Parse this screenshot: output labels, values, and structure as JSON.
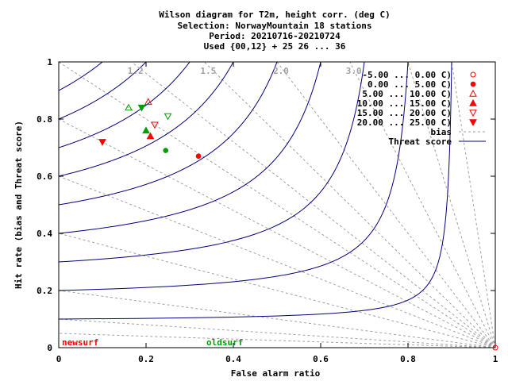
{
  "chart_data": {
    "type": "scatter",
    "title_lines": [
      "Wilson diagram  for T2m, height corr. (deg C)",
      "Selection: NorwayMountain     18 stations",
      "Period: 20210716-20210724",
      "Used {00,12} + 25 26 ... 36"
    ],
    "xlabel": "False alarm ratio",
    "ylabel": "Hit rate (bias and Threat score)",
    "xlim": [
      0,
      1
    ],
    "ylim": [
      0,
      1
    ],
    "x_ticks": [
      "0",
      "0.2",
      "0.4",
      "0.6",
      "0.8",
      "1"
    ],
    "y_ticks": [
      "0",
      "0.2",
      "0.4",
      "0.6",
      "0.8",
      "1"
    ],
    "x_tick_values": [
      0,
      0.2,
      0.4,
      0.6,
      0.8,
      1
    ],
    "y_tick_values": [
      0,
      0.2,
      0.4,
      0.6,
      0.8,
      1
    ],
    "bias_values": [
      0.2,
      0.4,
      0.6,
      0.8,
      1.0,
      1.2,
      1.5,
      2.0,
      3.0,
      5.0,
      10.0,
      0.1,
      0.05
    ],
    "bias_labels": [
      {
        "value": 1.2,
        "text": "1.2"
      },
      {
        "value": 1.5,
        "text": "1.5"
      },
      {
        "value": 2.0,
        "text": "2.0"
      },
      {
        "value": 3.0,
        "text": "3.0"
      }
    ],
    "threat_score_values": [
      0.1,
      0.2,
      0.3,
      0.4,
      0.5,
      0.6,
      0.7,
      0.8,
      0.9
    ],
    "legend": {
      "position": "top-right",
      "entries": [
        {
          "label": "-5.00 ...  0.00 C)",
          "marker": "circle-open"
        },
        {
          "label": "0.00 ...  5.00 C)",
          "marker": "circle-filled"
        },
        {
          "label": "5.00 ... 10.00 C)",
          "marker": "triangle-up-open"
        },
        {
          "label": "10.00 ... 15.00 C)",
          "marker": "triangle-up-filled"
        },
        {
          "label": "15.00 ... 20.00 C)",
          "marker": "triangle-down-open"
        },
        {
          "label": "20.00 ... 25.00 C)",
          "marker": "triangle-down-filled"
        },
        {
          "label": "bias",
          "marker": "dashed-line"
        },
        {
          "label": "Threat score",
          "marker": "solid-line"
        }
      ]
    },
    "experiments": [
      {
        "name": "newsurf",
        "color": "#ff0000"
      },
      {
        "name": "oldsurf",
        "color": "#00a000"
      }
    ],
    "series": [
      {
        "class": "-5.00 ...  0.00 C)",
        "experiment": "newsurf",
        "marker": "circle-open",
        "x": 1.0,
        "y": 0.0
      },
      {
        "class": "0.00 ...  5.00 C)",
        "experiment": "newsurf",
        "marker": "circle-filled",
        "x": 0.32,
        "y": 0.67
      },
      {
        "class": "0.00 ...  5.00 C)",
        "experiment": "oldsurf",
        "marker": "circle-filled",
        "x": 0.245,
        "y": 0.69
      },
      {
        "class": "5.00 ... 10.00 C)",
        "experiment": "oldsurf",
        "marker": "triangle-up-open",
        "x": 0.16,
        "y": 0.84
      },
      {
        "class": "5.00 ... 10.00 C)",
        "experiment": "newsurf",
        "marker": "triangle-up-open",
        "x": 0.205,
        "y": 0.86
      },
      {
        "class": "10.00 ... 15.00 C)",
        "experiment": "oldsurf",
        "marker": "triangle-up-filled",
        "x": 0.2,
        "y": 0.76
      },
      {
        "class": "10.00 ... 15.00 C)",
        "experiment": "newsurf",
        "marker": "triangle-up-filled",
        "x": 0.21,
        "y": 0.74
      },
      {
        "class": "15.00 ... 20.00 C)",
        "experiment": "oldsurf",
        "marker": "triangle-down-open",
        "x": 0.25,
        "y": 0.81
      },
      {
        "class": "15.00 ... 20.00 C)",
        "experiment": "newsurf",
        "marker": "triangle-down-open",
        "x": 0.22,
        "y": 0.78
      },
      {
        "class": "20.00 ... 25.00 C)",
        "experiment": "oldsurf",
        "marker": "triangle-down-filled",
        "x": 0.19,
        "y": 0.84
      },
      {
        "class": "20.00 ... 25.00 C)",
        "experiment": "newsurf",
        "marker": "triangle-down-filled",
        "x": 0.1,
        "y": 0.72
      }
    ],
    "grid": false,
    "bias_line_color": "#a0a0a0",
    "threat_line_color": "#000080"
  }
}
